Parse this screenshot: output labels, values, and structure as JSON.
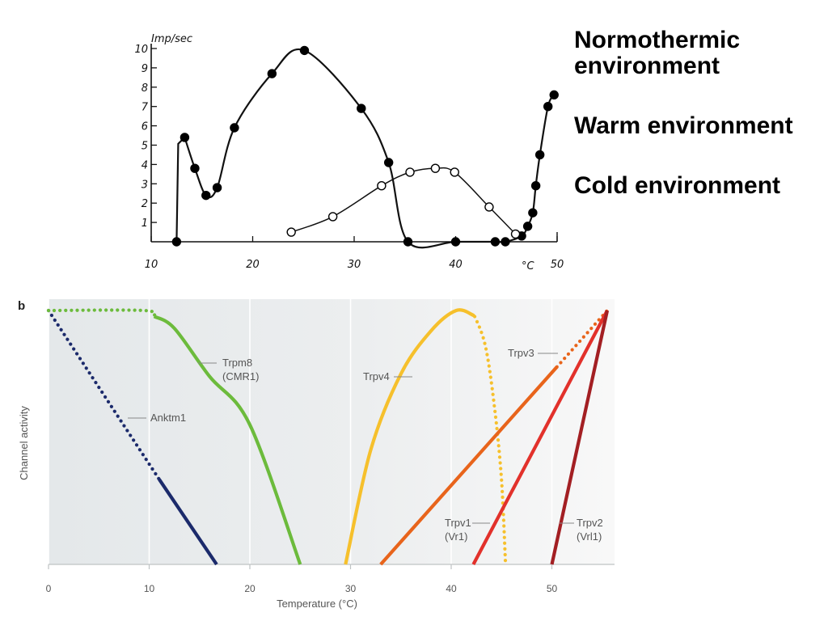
{
  "chart_data": [
    {
      "type": "line",
      "ylabel": "Imp/sec",
      "xunit": "°C",
      "xlim": [
        10,
        50
      ],
      "ylim": [
        0,
        10
      ],
      "x_ticks": [
        "10",
        "20",
        "30",
        "40",
        "50"
      ],
      "y_ticks": [
        "1",
        "2",
        "3",
        "4",
        "5",
        "6",
        "7",
        "8",
        "9",
        "10"
      ],
      "legend": [
        "Normothermic environment",
        "Warm environment",
        "Cold environment"
      ],
      "series": [
        {
          "marker": "filled",
          "points": [
            [
              12.5,
              0
            ],
            [
              13.3,
              5.4
            ],
            [
              14.3,
              3.8
            ],
            [
              15.4,
              2.4
            ],
            [
              16.5,
              2.8
            ],
            [
              18.2,
              5.9
            ],
            [
              21.9,
              8.7
            ],
            [
              25.1,
              9.9
            ],
            [
              30.7,
              6.9
            ],
            [
              33.4,
              4.1
            ],
            [
              35.3,
              0
            ],
            [
              40,
              0
            ],
            [
              43.9,
              0
            ],
            [
              44.9,
              0
            ],
            [
              46.5,
              0.3
            ],
            [
              47.1,
              0.8
            ],
            [
              47.6,
              1.5
            ],
            [
              47.9,
              2.9
            ],
            [
              48.3,
              4.5
            ],
            [
              49.1,
              7.0
            ],
            [
              49.7,
              7.6
            ]
          ]
        },
        {
          "marker": "open",
          "points": [
            [
              23.8,
              0.5
            ],
            [
              27.9,
              1.3
            ],
            [
              32.7,
              2.9
            ],
            [
              35.5,
              3.6
            ],
            [
              38,
              3.8
            ],
            [
              39.9,
              3.6
            ],
            [
              43.3,
              1.8
            ],
            [
              45.9,
              0.4
            ]
          ]
        }
      ]
    },
    {
      "type": "line",
      "panel_label": "b",
      "xlabel": "Temperature (°C)",
      "ylabel": "Channel activity",
      "xlim": [
        0,
        55
      ],
      "ylim": [
        0,
        1
      ],
      "x_ticks": [
        "0",
        "10",
        "20",
        "30",
        "40",
        "50"
      ],
      "series": [
        {
          "name": "Anktm1",
          "color": "#1b2a6b",
          "points": [
            [
              0,
              1.0
            ],
            [
              11,
              0.335
            ],
            [
              16.7,
              0
            ]
          ],
          "dotted_until_x": 11
        },
        {
          "name": "Trpm8 (CMR1)",
          "color": "#6cbb3c",
          "points": [
            [
              0,
              1.0
            ],
            [
              9.5,
              1.0
            ],
            [
              12.5,
              0.93
            ],
            [
              16,
              0.74
            ],
            [
              20,
              0.55
            ],
            [
              25,
              0
            ]
          ],
          "dotted_until_x": 10.5
        },
        {
          "name": "Trpv4",
          "color": "#f6c02c",
          "points": [
            [
              29.5,
              0
            ],
            [
              32,
              0.45
            ],
            [
              35,
              0.75
            ],
            [
              38,
              0.92
            ],
            [
              40.5,
              1.0
            ],
            [
              42.3,
              0.98
            ],
            [
              43.4,
              0.86
            ],
            [
              44.3,
              0.62
            ],
            [
              45.0,
              0.33
            ],
            [
              45.4,
              0
            ]
          ],
          "dotted_from_x": 42.2
        },
        {
          "name": "Trpv3",
          "color": "#e8641b",
          "points": [
            [
              33,
              0
            ],
            [
              55.5,
              1.0
            ]
          ],
          "dotted_from_x": 50.5
        },
        {
          "name": "Trpv1 (Vr1)",
          "color": "#e2312b",
          "points": [
            [
              42.2,
              0
            ],
            [
              55.5,
              1.0
            ]
          ]
        },
        {
          "name": "Trpv2 (Vrl1)",
          "color": "#a31f23",
          "points": [
            [
              50,
              0
            ],
            [
              55.5,
              1.0
            ]
          ]
        }
      ],
      "annotations": [
        {
          "series": "Trpm8 (CMR1)",
          "lines": [
            "Trpm8",
            "(CMR1)"
          ]
        },
        {
          "series": "Anktm1",
          "lines": [
            "Anktm1"
          ]
        },
        {
          "series": "Trpv4",
          "lines": [
            "Trpv4"
          ]
        },
        {
          "series": "Trpv3",
          "lines": [
            "Trpv3"
          ]
        },
        {
          "series": "Trpv1 (Vr1)",
          "lines": [
            "Trpv1",
            "(Vr1)"
          ]
        },
        {
          "series": "Trpv2 (Vrl1)",
          "lines": [
            "Trpv2",
            "(Vrl1)"
          ]
        }
      ]
    }
  ]
}
